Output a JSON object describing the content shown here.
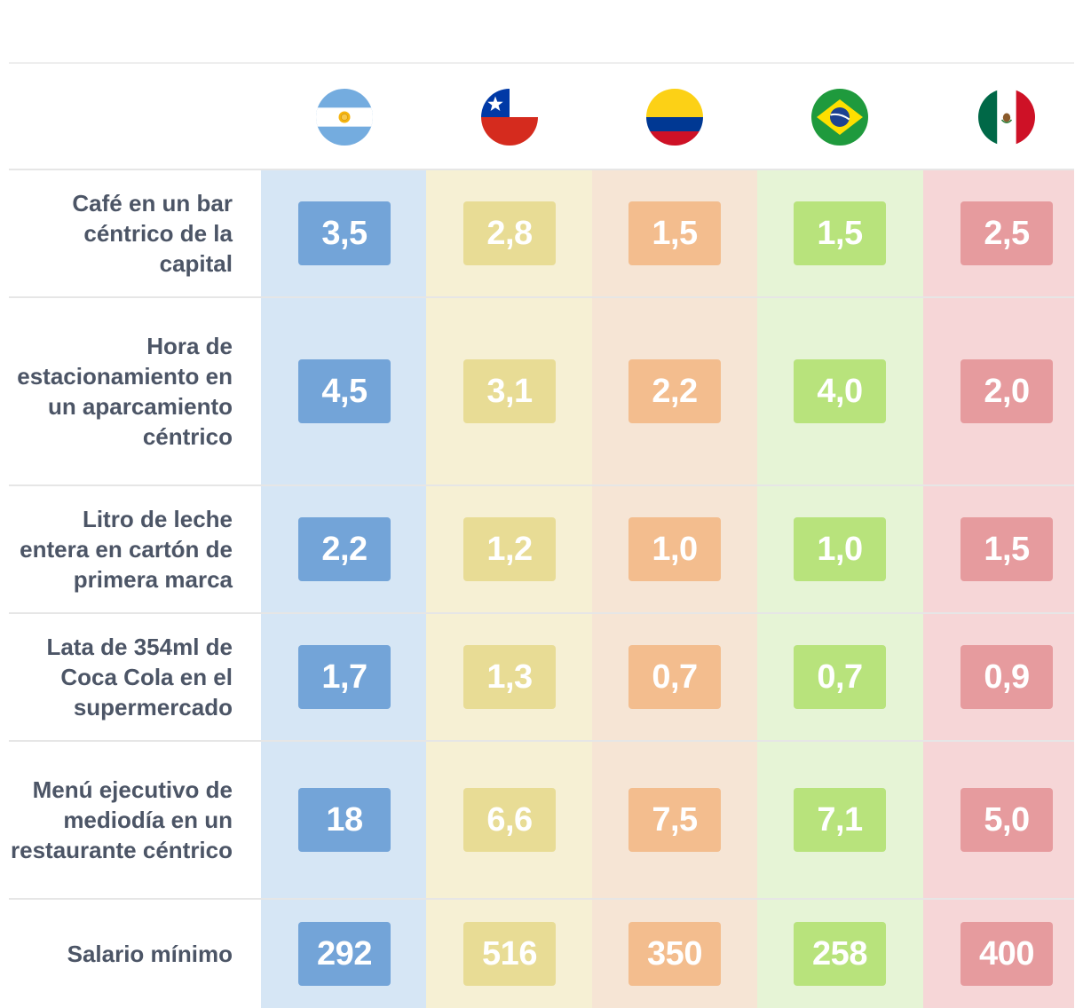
{
  "chart_data": {
    "type": "table",
    "columns": [
      {
        "flag": "argentina-flag-icon",
        "color": "#73a4d8",
        "bg": "#d6e6f5"
      },
      {
        "flag": "chile-flag-icon",
        "color": "#e8dc95",
        "bg": "#f6f0d4"
      },
      {
        "flag": "colombia-flag-icon",
        "color": "#f3bd8e",
        "bg": "#f6e5d5"
      },
      {
        "flag": "brazil-flag-icon",
        "color": "#b8e37c",
        "bg": "#e6f4d6"
      },
      {
        "flag": "mexico-flag-icon",
        "color": "#e69b9e",
        "bg": "#f6d6d7"
      }
    ],
    "rows": [
      {
        "label": "Café en un bar céntrico de la capital",
        "values": [
          "3,5",
          "2,8",
          "1,5",
          "1,5",
          "2,5"
        ]
      },
      {
        "label": "Hora de estacionamiento en un aparcamiento céntrico",
        "values": [
          "4,5",
          "3,1",
          "2,2",
          "4,0",
          "2,0"
        ]
      },
      {
        "label": "Litro de leche entera en cartón de primera marca",
        "values": [
          "2,2",
          "1,2",
          "1,0",
          "1,0",
          "1,5"
        ]
      },
      {
        "label": "Lata de 354ml de Coca Cola en el supermercado",
        "values": [
          "1,7",
          "1,3",
          "0,7",
          "0,7",
          "0,9"
        ]
      },
      {
        "label": "Menú ejecutivo de mediodía en un restaurante céntrico",
        "values": [
          "18",
          "6,6",
          "7,5",
          "7,1",
          "5,0"
        ]
      },
      {
        "label": "Salario mínimo",
        "values": [
          "292",
          "516",
          "350",
          "258",
          "400"
        ]
      }
    ]
  }
}
